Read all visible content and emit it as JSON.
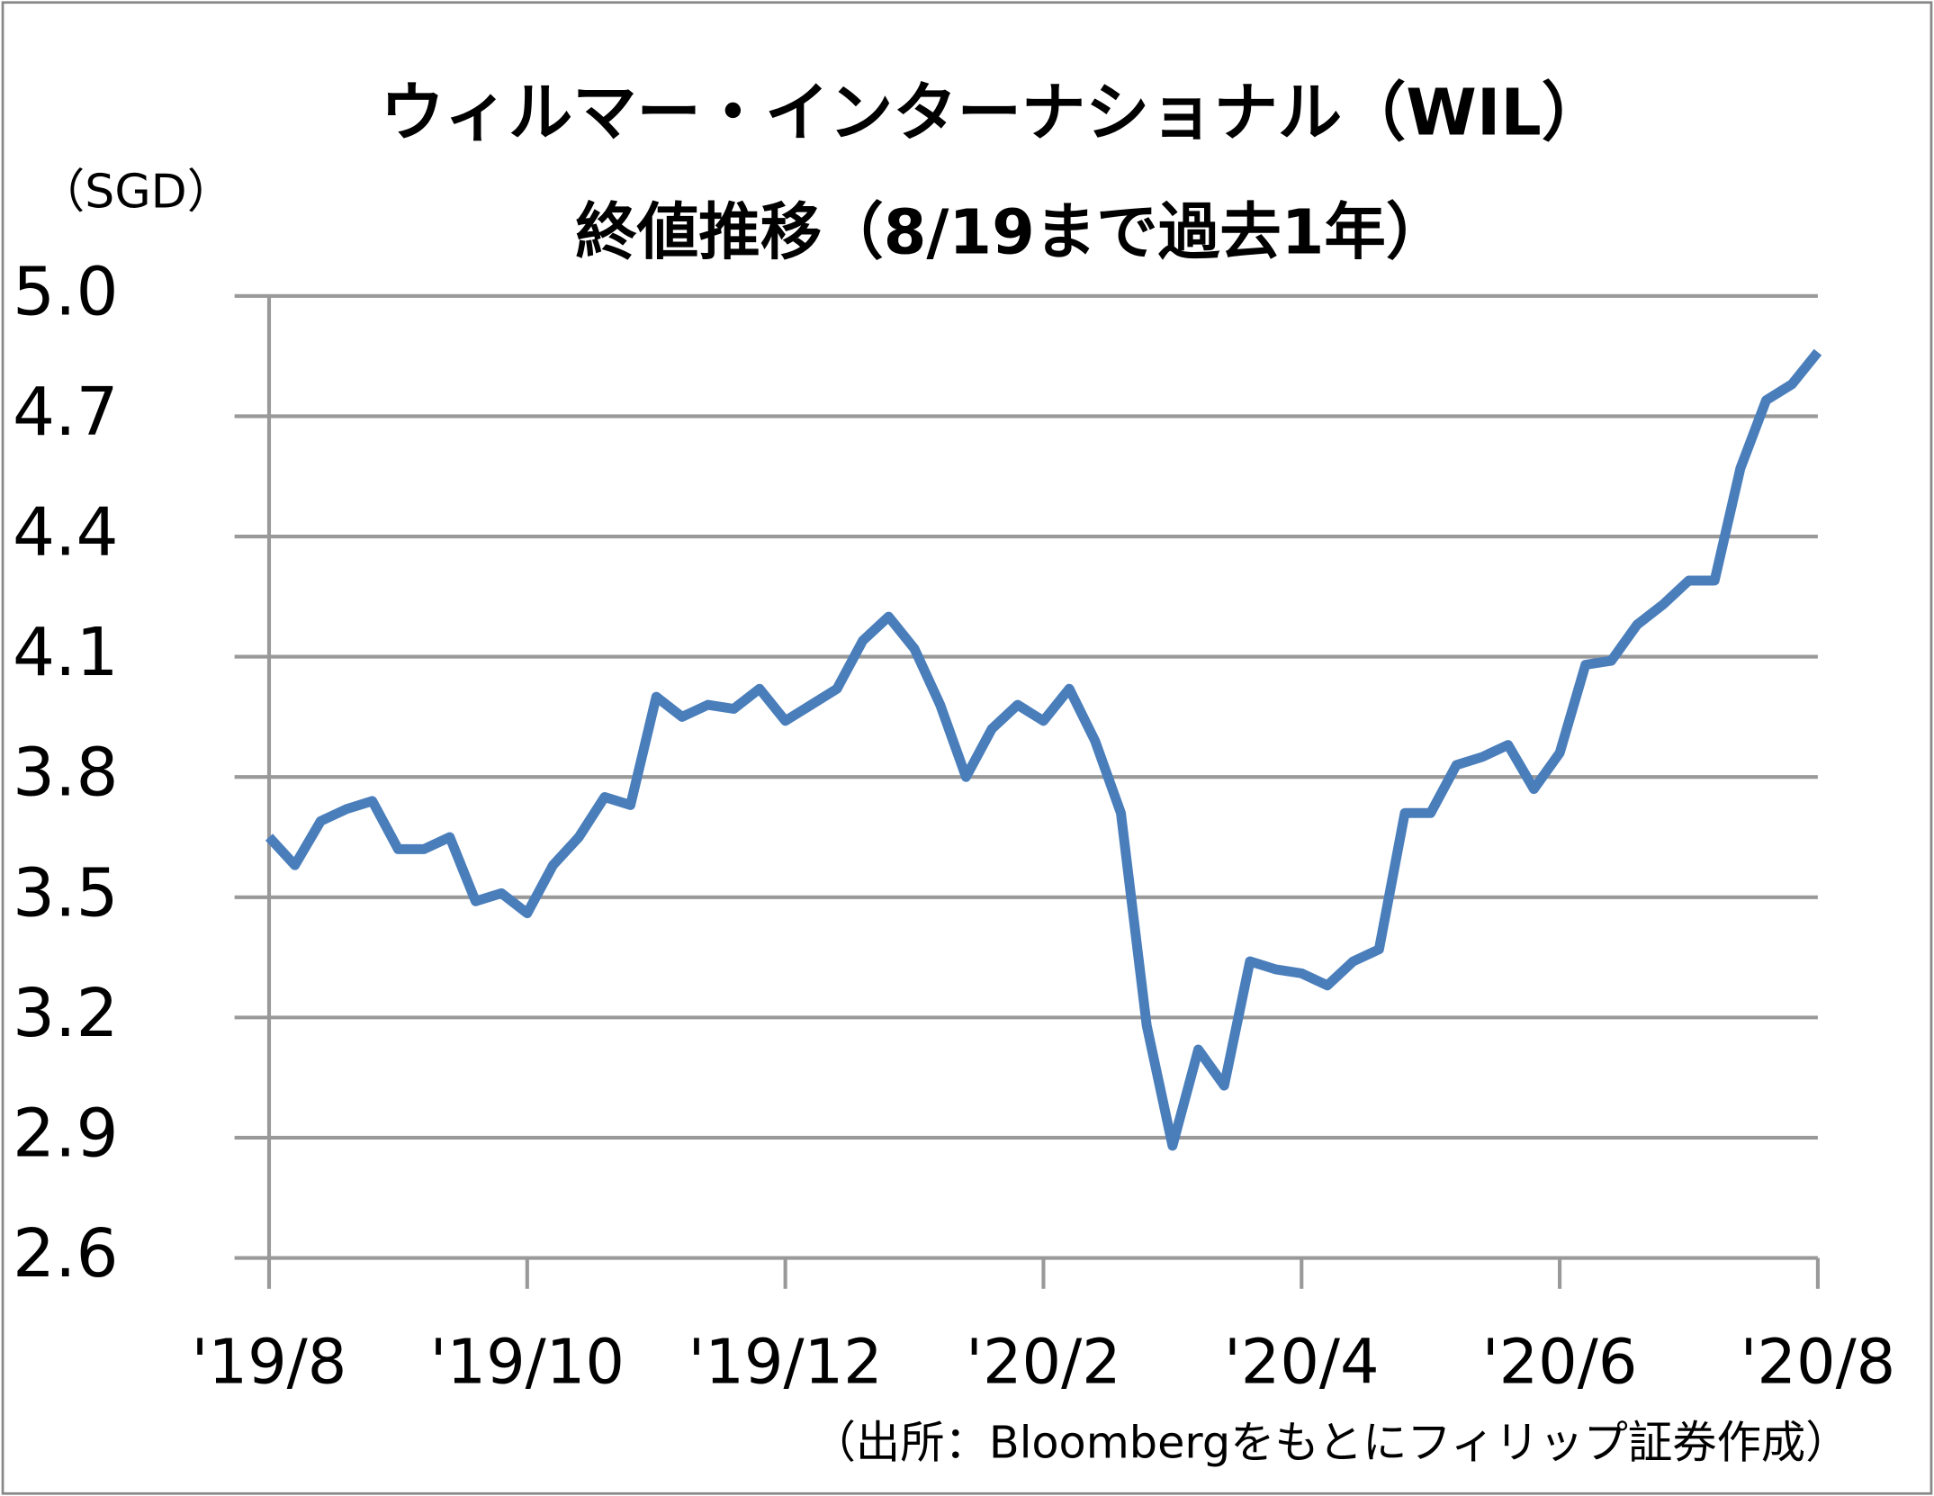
{
  "chart_data": {
    "type": "line",
    "title": "ウィルマー・インターナショナル（WIL）",
    "subtitle": "終値推移（8/19まで過去1年）",
    "y_label": "（SGD）",
    "source": "（出所：Bloombergをもとにフィリップ証券作成）",
    "categories": [
      "'19/8",
      null,
      null,
      null,
      null,
      null,
      null,
      null,
      null,
      null,
      "'19/10",
      null,
      null,
      null,
      null,
      null,
      null,
      null,
      null,
      null,
      "'19/12",
      null,
      null,
      null,
      null,
      null,
      null,
      null,
      null,
      null,
      "'20/2",
      null,
      null,
      null,
      null,
      null,
      null,
      null,
      null,
      null,
      "'20/4",
      null,
      null,
      null,
      null,
      null,
      null,
      null,
      null,
      null,
      "'20/6",
      null,
      null,
      null,
      null,
      null,
      null,
      null,
      null,
      null,
      "'20/8"
    ],
    "series": [
      {
        "name": "WIL",
        "color": "#4a7ebb",
        "values": [
          3.65,
          3.58,
          3.69,
          3.72,
          3.74,
          3.62,
          3.62,
          3.65,
          3.49,
          3.51,
          3.46,
          3.58,
          3.65,
          3.75,
          3.73,
          4.0,
          3.95,
          3.98,
          3.97,
          4.02,
          3.94,
          3.98,
          4.02,
          4.14,
          4.2,
          4.12,
          3.98,
          3.8,
          3.92,
          3.98,
          3.94,
          4.02,
          3.89,
          3.71,
          3.18,
          2.88,
          3.12,
          3.03,
          3.34,
          3.32,
          3.31,
          3.28,
          3.34,
          3.37,
          3.71,
          3.71,
          3.83,
          3.85,
          3.88,
          3.77,
          3.86,
          4.08,
          4.09,
          4.18,
          4.23,
          4.29,
          4.29,
          4.57,
          4.74,
          4.78,
          4.86
        ]
      }
    ],
    "ylim": [
      2.6,
      5.0
    ],
    "yticks": [
      2.6,
      2.9,
      3.2,
      3.5,
      3.8,
      4.1,
      4.4,
      4.7,
      {
        "value": 5.0,
        "label": "5.0"
      }
    ],
    "grid": true
  }
}
